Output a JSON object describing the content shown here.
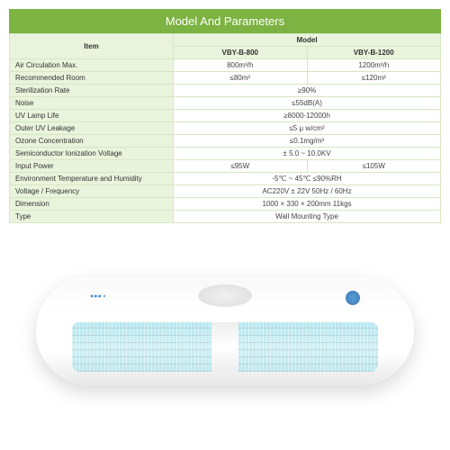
{
  "title": "Model And Parameters",
  "headers": {
    "item": "Item",
    "model": "Model"
  },
  "models": [
    "VBY-B-800",
    "VBY-B-1200"
  ],
  "rows": [
    {
      "label": "Air Circulation Max.",
      "v1": "800m³/h",
      "v2": "1200m³/h",
      "span": false
    },
    {
      "label": "Recommended Room",
      "v1": "≤80m²",
      "v2": "≤120m²",
      "span": false
    },
    {
      "label": "Sterilization Rate",
      "v1": "≥90%",
      "span": true
    },
    {
      "label": "Noise",
      "v1": "≤55dB(A)",
      "span": true
    },
    {
      "label": "UV Lamp Life",
      "v1": "≥8000-12000h",
      "span": true
    },
    {
      "label": "Outer UV Leakage",
      "v1": "≤5 μ w/cm²",
      "span": true
    },
    {
      "label": "Ozone Concentration",
      "v1": "≤0.1mg/m³",
      "span": true
    },
    {
      "label": "Semiconductor Ionization Voltage",
      "v1": "± 5.0 ~ 10.0KV",
      "span": true
    },
    {
      "label": "Input Power",
      "v1": "≤95W",
      "v2": "≤105W",
      "span": false
    },
    {
      "label": "Environment Temperature and Humidity",
      "v1": "-5℃ ~ 45℃  ≤90%RH",
      "span": true
    },
    {
      "label": "Voltage / Frequency",
      "v1": "AC220V ± 22V  50Hz / 60Hz",
      "span": true
    },
    {
      "label": "Dimension",
      "v1": "1000 × 330 × 200mm  11kgs",
      "span": true
    },
    {
      "label": "Type",
      "v1": "Wall Mounting Type",
      "span": true
    }
  ],
  "colors": {
    "header_bg": "#7cb342",
    "row_bg": "#eaf4dc",
    "border": "#d4e8c4"
  }
}
